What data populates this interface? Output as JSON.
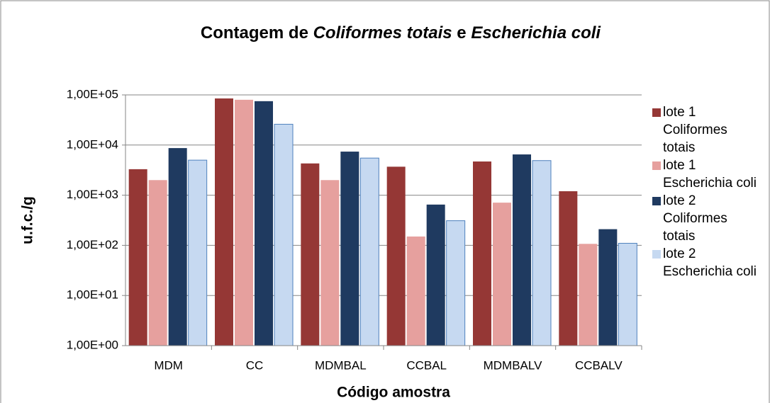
{
  "chart_data": {
    "type": "bar",
    "title": [
      "Contagem de ",
      "Coliformes totais",
      " e ",
      "Escherichia coli"
    ],
    "x_label": "Código amostra",
    "y_label": "u.f.c./g",
    "categories": [
      "MDM",
      "CC",
      "MDMBAL",
      "CCBAL",
      "MDMBALV",
      "CCBALV"
    ],
    "series": [
      {
        "name": "lote 1 Coliformes totais",
        "color": "#953735",
        "values": [
          3300,
          85000,
          4300,
          3700,
          4700,
          1200
        ]
      },
      {
        "name": "lote 1 Escherichia coli",
        "color": "#e6a09e",
        "values": [
          2000,
          80000,
          2000,
          150,
          710,
          107
        ]
      },
      {
        "name": "lote 2 Coliformes totais",
        "color": "#1f3a60",
        "values": [
          8700,
          75000,
          7400,
          650,
          6500,
          210
        ]
      },
      {
        "name": "lote 2 Escherichia coli",
        "color": "#c6d9f1",
        "values": [
          5000,
          26000,
          5500,
          310,
          4900,
          110
        ]
      }
    ],
    "ylim": [
      1,
      100000
    ],
    "log_scale": true,
    "grid": true,
    "legend": "right",
    "yticks": [
      {
        "value": 1,
        "label": "1,00E+00"
      },
      {
        "value": 10,
        "label": "1,00E+01"
      },
      {
        "value": 100,
        "label": "1,00E+02"
      },
      {
        "value": 1000,
        "label": "1,00E+03"
      },
      {
        "value": 10000,
        "label": "1,00E+04"
      },
      {
        "value": 100000,
        "label": "1,00E+05"
      }
    ]
  }
}
